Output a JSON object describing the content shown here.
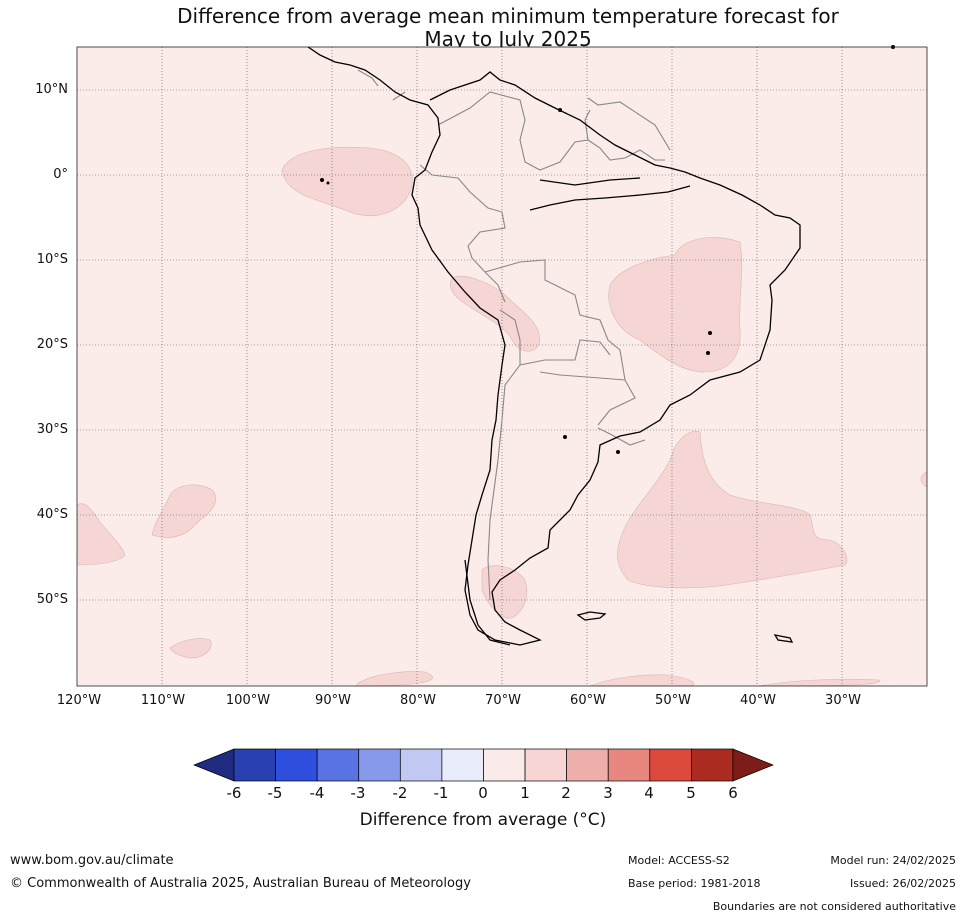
{
  "title": {
    "line1": "Difference from average mean minimum temperature forecast for",
    "line2": "May to July 2025"
  },
  "map": {
    "background_color": "#fbecea",
    "anomaly_fill_color": "#f5d6d4",
    "anomaly_category": "1 to 2",
    "latitude_labels": [
      "10°N",
      "0°",
      "10°S",
      "20°S",
      "30°S",
      "40°S",
      "50°S"
    ],
    "longitude_labels": [
      "120°W",
      "110°W",
      "100°W",
      "90°W",
      "80°W",
      "70°W",
      "60°W",
      "50°W",
      "40°W",
      "30°W"
    ],
    "grid": "dotted"
  },
  "colorbar": {
    "ticks": [
      "-6",
      "-5",
      "-4",
      "-3",
      "-2",
      "-1",
      "0",
      "1",
      "2",
      "3",
      "4",
      "5",
      "6"
    ],
    "colors": [
      "#1f2a80",
      "#2940b0",
      "#2f50de",
      "#5a73e2",
      "#8799ea",
      "#c1c9f2",
      "#e9ecfa",
      "#fbeaea",
      "#f6d5d4",
      "#eeaea9",
      "#e8877f",
      "#dc4a3d",
      "#ac2b21",
      "#7c1d17"
    ],
    "label": "Difference from average (°C)"
  },
  "footer": {
    "url": "www.bom.gov.au/climate",
    "copyright": "© Commonwealth of Australia 2025, Australian Bureau of Meteorology",
    "model": "Model: ACCESS-S2",
    "base_period": "Base period: 1981-2018",
    "model_run": "Model run: 24/02/2025",
    "issued": "Issued: 26/02/2025",
    "disclaimer": "Boundaries are not considered authoritative"
  }
}
